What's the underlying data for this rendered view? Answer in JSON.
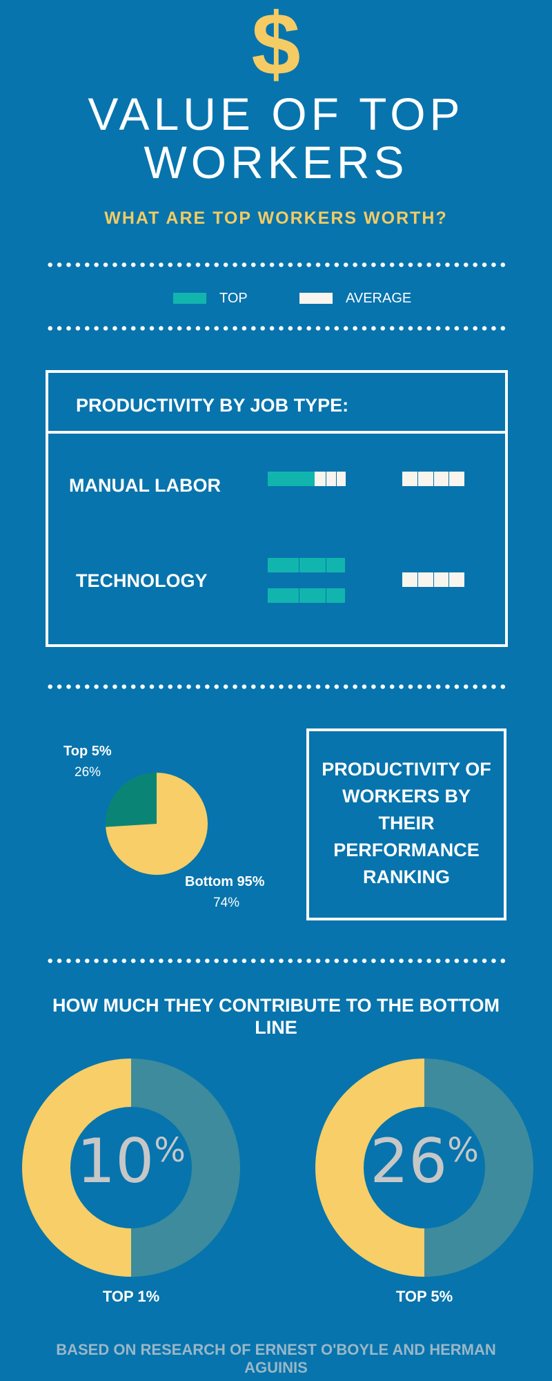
{
  "header": {
    "dollar_icon": "$",
    "title_line1": "VALUE OF TOP",
    "title_line2": "WORKERS",
    "subtitle": "WHAT ARE TOP WORKERS WORTH?",
    "accent_color": "#f5cb63"
  },
  "legend": {
    "top_label": "TOP",
    "average_label": "AVERAGE",
    "top_color": "#12b5ae",
    "average_color": "#f7f5ee"
  },
  "job_type": {
    "heading": "PRODUCTIVITY BY JOB TYPE:",
    "rows": [
      {
        "label": "MANUAL LABOR",
        "top_units": 2.5,
        "average_units": 4
      },
      {
        "label": "TECHNOLOGY",
        "top_units": 10,
        "average_units": 4
      }
    ]
  },
  "chart_data": [
    {
      "type": "pie",
      "title": "",
      "series": [
        {
          "name": "Top 5%",
          "label": "Top 5%",
          "value": 26,
          "display": "26%",
          "color": "#0a8575"
        },
        {
          "name": "Bottom 95%",
          "label": "Bottom 95%",
          "value": 74,
          "display": "74%",
          "color": "#f7ce67"
        }
      ]
    }
  ],
  "ranking_box": {
    "line1": "PRODUCTIVITY OF",
    "line2": "WORKERS BY",
    "line3": "THEIR",
    "line4": "PERFORMANCE",
    "line5": "RANKING"
  },
  "bottom_line": {
    "heading_line1": "HOW MUCH THEY CONTRIBUTE TO THE BOTTOM",
    "heading_line2": "LINE",
    "donuts": [
      {
        "number": "10",
        "percent_sign": "%",
        "label": "TOP 1%"
      },
      {
        "number": "26",
        "percent_sign": "%",
        "label": "TOP 5%"
      }
    ]
  },
  "footer": {
    "line1": "BASED ON RESEARCH OF ERNEST O'BOYLE AND HERMAN",
    "line2": "AGUINIS"
  }
}
